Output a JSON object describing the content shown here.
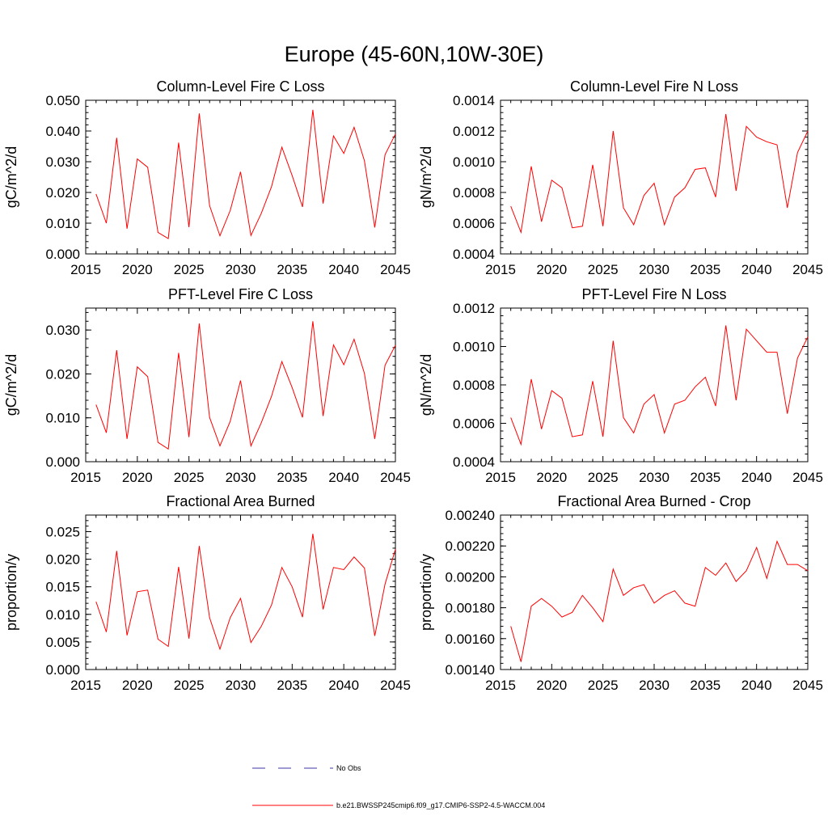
{
  "figure_title": "Europe (45-60N,10W-30E)",
  "legend": [
    {
      "label": "No Obs",
      "color": "#3a3aa0",
      "style": "dashed"
    },
    {
      "label": "b.e21.BWSSP245cmip6.f09_g17.CMIP6-SSP2-4.5-WACCM.004",
      "color": "#ff0000",
      "style": "solid"
    }
  ],
  "chart_data": [
    {
      "type": "line",
      "title": "Column-Level Fire C Loss",
      "xlabel": "",
      "ylabel": "gC/m^2/d",
      "xlim": [
        2015,
        2045
      ],
      "ylim": [
        0.0,
        0.05
      ],
      "xticks": [
        "2015",
        "2020",
        "2025",
        "2030",
        "2035",
        "2040",
        "2045"
      ],
      "yticks": [
        "0.000",
        "0.010",
        "0.020",
        "0.030",
        "0.040",
        "0.050"
      ],
      "series": [
        {
          "name": "b.e21.BWSSP245cmip6.f09_g17.CMIP6-SSP2-4.5-WACCM.004",
          "color": "#ff0000",
          "x": [
            2016,
            2017,
            2018,
            2019,
            2020,
            2021,
            2022,
            2023,
            2024,
            2025,
            2026,
            2027,
            2028,
            2029,
            2030,
            2031,
            2032,
            2033,
            2034,
            2035,
            2036,
            2037,
            2038,
            2039,
            2040,
            2041,
            2042,
            2043,
            2044,
            2045
          ],
          "y": [
            0.0195,
            0.01,
            0.0378,
            0.0082,
            0.0309,
            0.0282,
            0.007,
            0.005,
            0.0362,
            0.0087,
            0.0457,
            0.0157,
            0.0059,
            0.0141,
            0.0267,
            0.006,
            0.0131,
            0.0219,
            0.0347,
            0.0255,
            0.0153,
            0.0469,
            0.0164,
            0.0384,
            0.0327,
            0.0412,
            0.0303,
            0.0086,
            0.0323,
            0.039
          ]
        }
      ]
    },
    {
      "type": "line",
      "title": "Column-Level Fire N Loss",
      "xlabel": "",
      "ylabel": "gN/m^2/d",
      "xlim": [
        2015,
        2045
      ],
      "ylim": [
        0.0004,
        0.0014
      ],
      "xticks": [
        "2015",
        "2020",
        "2025",
        "2030",
        "2035",
        "2040",
        "2045"
      ],
      "yticks": [
        "0.0004",
        "0.0006",
        "0.0008",
        "0.0010",
        "0.0012",
        "0.0014"
      ],
      "series": [
        {
          "name": "b.e21.BWSSP245cmip6.f09_g17.CMIP6-SSP2-4.5-WACCM.004",
          "color": "#ff0000",
          "x": [
            2016,
            2017,
            2018,
            2019,
            2020,
            2021,
            2022,
            2023,
            2024,
            2025,
            2026,
            2027,
            2028,
            2029,
            2030,
            2031,
            2032,
            2033,
            2034,
            2035,
            2036,
            2037,
            2038,
            2039,
            2040,
            2041,
            2042,
            2043,
            2044,
            2045
          ],
          "y": [
            0.00071,
            0.00054,
            0.00097,
            0.00061,
            0.00088,
            0.00083,
            0.00057,
            0.00058,
            0.00098,
            0.00058,
            0.0012,
            0.0007,
            0.00059,
            0.00078,
            0.00086,
            0.00059,
            0.00077,
            0.00083,
            0.00095,
            0.00096,
            0.00077,
            0.00131,
            0.00081,
            0.00123,
            0.00116,
            0.00113,
            0.00111,
            0.0007,
            0.00106,
            0.0012
          ]
        }
      ]
    },
    {
      "type": "line",
      "title": "PFT-Level Fire C Loss",
      "xlabel": "",
      "ylabel": "gC/m^2/d",
      "xlim": [
        2015,
        2045
      ],
      "ylim": [
        0.0,
        0.035
      ],
      "xticks": [
        "2015",
        "2020",
        "2025",
        "2030",
        "2035",
        "2040",
        "2045"
      ],
      "yticks": [
        "0.000",
        "0.010",
        "0.020",
        "0.030"
      ],
      "series": [
        {
          "name": "b.e21.BWSSP245cmip6.f09_g17.CMIP6-SSP2-4.5-WACCM.004",
          "color": "#ff0000",
          "x": [
            2016,
            2017,
            2018,
            2019,
            2020,
            2021,
            2022,
            2023,
            2024,
            2025,
            2026,
            2027,
            2028,
            2029,
            2030,
            2031,
            2032,
            2033,
            2034,
            2035,
            2036,
            2037,
            2038,
            2039,
            2040,
            2041,
            2042,
            2043,
            2044,
            2045
          ],
          "y": [
            0.013,
            0.0066,
            0.0254,
            0.0052,
            0.0216,
            0.0194,
            0.0044,
            0.0029,
            0.0248,
            0.0056,
            0.0315,
            0.0101,
            0.0036,
            0.0092,
            0.0185,
            0.0036,
            0.0088,
            0.0149,
            0.0228,
            0.0169,
            0.0101,
            0.032,
            0.0104,
            0.0266,
            0.0221,
            0.0279,
            0.0201,
            0.0052,
            0.022,
            0.0265
          ]
        }
      ]
    },
    {
      "type": "line",
      "title": "PFT-Level Fire N Loss",
      "xlabel": "",
      "ylabel": "gN/m^2/d",
      "xlim": [
        2015,
        2045
      ],
      "ylim": [
        0.0004,
        0.0012
      ],
      "xticks": [
        "2015",
        "2020",
        "2025",
        "2030",
        "2035",
        "2040",
        "2045"
      ],
      "yticks": [
        "0.0004",
        "0.0006",
        "0.0008",
        "0.0010",
        "0.0012"
      ],
      "series": [
        {
          "name": "b.e21.BWSSP245cmip6.f09_g17.CMIP6-SSP2-4.5-WACCM.004",
          "color": "#ff0000",
          "x": [
            2016,
            2017,
            2018,
            2019,
            2020,
            2021,
            2022,
            2023,
            2024,
            2025,
            2026,
            2027,
            2028,
            2029,
            2030,
            2031,
            2032,
            2033,
            2034,
            2035,
            2036,
            2037,
            2038,
            2039,
            2040,
            2041,
            2042,
            2043,
            2044,
            2045
          ],
          "y": [
            0.00063,
            0.00049,
            0.00083,
            0.00057,
            0.00077,
            0.00073,
            0.00053,
            0.00054,
            0.00082,
            0.00053,
            0.00103,
            0.00063,
            0.00055,
            0.0007,
            0.00075,
            0.00055,
            0.0007,
            0.00072,
            0.00079,
            0.00084,
            0.00069,
            0.00111,
            0.00072,
            0.00109,
            0.00103,
            0.00097,
            0.00097,
            0.00065,
            0.00094,
            0.00105
          ]
        }
      ]
    },
    {
      "type": "line",
      "title": "Fractional Area Burned",
      "xlabel": "",
      "ylabel": "proportion/y",
      "xlim": [
        2015,
        2045
      ],
      "ylim": [
        0.0,
        0.028
      ],
      "xticks": [
        "2015",
        "2020",
        "2025",
        "2030",
        "2035",
        "2040",
        "2045"
      ],
      "yticks": [
        "0.000",
        "0.005",
        "0.010",
        "0.015",
        "0.020",
        "0.025"
      ],
      "series": [
        {
          "name": "b.e21.BWSSP245cmip6.f09_g17.CMIP6-SSP2-4.5-WACCM.004",
          "color": "#ff0000",
          "x": [
            2016,
            2017,
            2018,
            2019,
            2020,
            2021,
            2022,
            2023,
            2024,
            2025,
            2026,
            2027,
            2028,
            2029,
            2030,
            2031,
            2032,
            2033,
            2034,
            2035,
            2036,
            2037,
            2038,
            2039,
            2040,
            2041,
            2042,
            2043,
            2044,
            2045
          ],
          "y": [
            0.0123,
            0.0068,
            0.0215,
            0.0062,
            0.0141,
            0.0144,
            0.0055,
            0.0042,
            0.0186,
            0.0056,
            0.0224,
            0.0094,
            0.0037,
            0.0094,
            0.0129,
            0.0049,
            0.0078,
            0.0117,
            0.0185,
            0.015,
            0.0095,
            0.0246,
            0.0109,
            0.0185,
            0.0181,
            0.0204,
            0.0184,
            0.0061,
            0.0155,
            0.0218
          ]
        }
      ]
    },
    {
      "type": "line",
      "title": "Fractional Area Burned - Crop",
      "xlabel": "",
      "ylabel": "proportion/y",
      "xlim": [
        2015,
        2045
      ],
      "ylim": [
        0.0014,
        0.0024
      ],
      "xticks": [
        "2015",
        "2020",
        "2025",
        "2030",
        "2035",
        "2040",
        "2045"
      ],
      "yticks": [
        "0.00140",
        "0.00160",
        "0.00180",
        "0.00200",
        "0.00220",
        "0.00240"
      ],
      "series": [
        {
          "name": "b.e21.BWSSP245cmip6.f09_g17.CMIP6-SSP2-4.5-WACCM.004",
          "color": "#ff0000",
          "x": [
            2016,
            2017,
            2018,
            2019,
            2020,
            2021,
            2022,
            2023,
            2024,
            2025,
            2026,
            2027,
            2028,
            2029,
            2030,
            2031,
            2032,
            2033,
            2034,
            2035,
            2036,
            2037,
            2038,
            2039,
            2040,
            2041,
            2042,
            2043,
            2044,
            2045
          ],
          "y": [
            0.00168,
            0.00145,
            0.00181,
            0.00186,
            0.00181,
            0.00174,
            0.00177,
            0.00188,
            0.0018,
            0.00171,
            0.00205,
            0.00188,
            0.00193,
            0.00195,
            0.00183,
            0.00188,
            0.00191,
            0.00183,
            0.00181,
            0.00206,
            0.00201,
            0.00209,
            0.00197,
            0.00204,
            0.00219,
            0.00199,
            0.00223,
            0.00208,
            0.00208,
            0.00204
          ]
        }
      ]
    }
  ]
}
